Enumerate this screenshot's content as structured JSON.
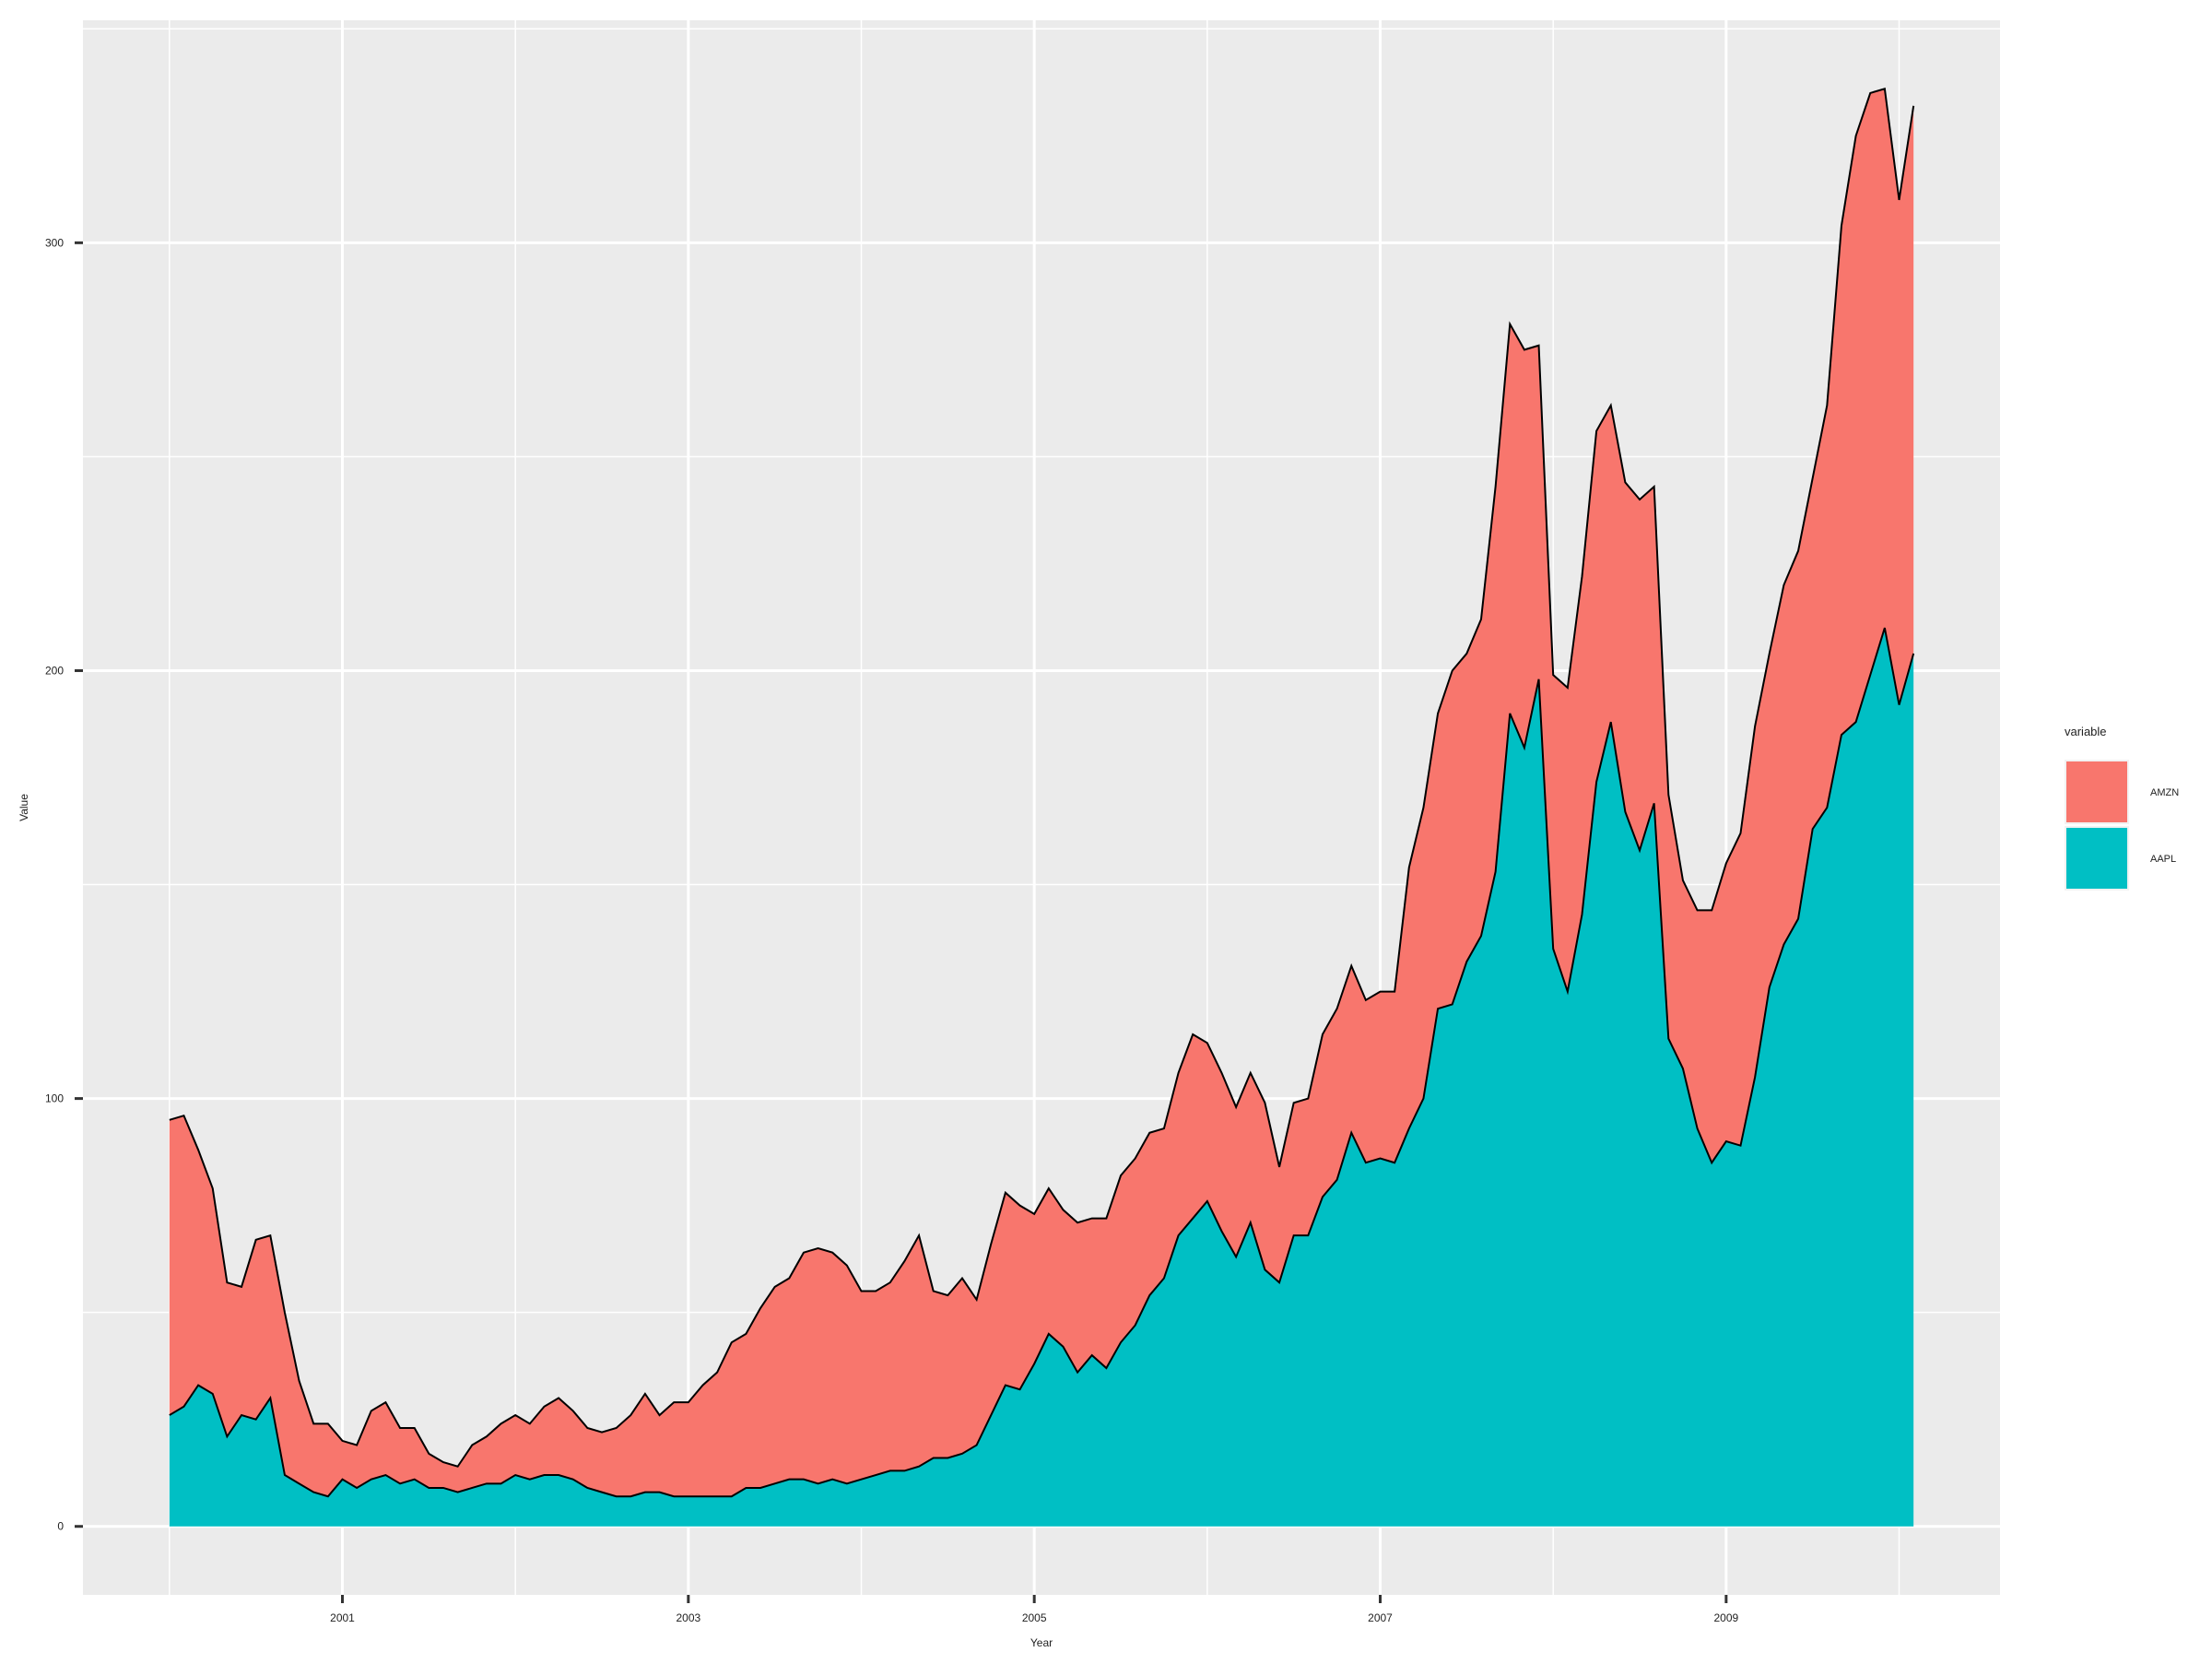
{
  "chart_data": {
    "type": "area",
    "stacked": true,
    "title": "",
    "xlabel": "Year",
    "ylabel": "Value",
    "x_ticks": [
      "2001",
      "2003",
      "2005",
      "2007",
      "2009"
    ],
    "y_ticks": [
      0,
      100,
      200,
      300
    ],
    "x_range": [
      "1999-07",
      "2010-08"
    ],
    "ylim": [
      -16,
      352
    ],
    "grid": true,
    "legend": {
      "title": "variable",
      "position": "right",
      "entries": [
        {
          "label": "AMZN",
          "color": "#F8766D"
        },
        {
          "label": "AAPL",
          "color": "#00BFC4"
        }
      ]
    },
    "x_start": "2000-01",
    "x_step": "monthly",
    "series": [
      {
        "name": "AAPL",
        "color": "#00BFC4",
        "values": [
          26,
          28,
          33,
          31,
          21,
          26,
          25,
          30,
          12,
          10,
          8,
          7,
          11,
          9,
          11,
          12,
          10,
          11,
          9,
          9,
          8,
          9,
          10,
          10,
          12,
          11,
          12,
          12,
          11,
          9,
          8,
          7,
          7,
          8,
          8,
          7,
          7,
          7,
          7,
          7,
          9,
          9,
          10,
          11,
          11,
          10,
          11,
          10,
          11,
          12,
          13,
          13,
          14,
          16,
          16,
          17,
          19,
          26,
          33,
          32,
          38,
          45,
          42,
          36,
          40,
          37,
          43,
          47,
          54,
          58,
          68,
          72,
          76,
          69,
          63,
          71,
          60,
          57,
          68,
          68,
          77,
          81,
          92,
          85,
          86,
          85,
          93,
          100,
          121,
          122,
          132,
          138,
          153,
          190,
          182,
          198,
          135,
          125,
          143,
          174,
          188,
          167,
          158,
          169,
          114,
          107,
          93,
          85,
          90,
          89,
          105,
          126,
          136,
          142,
          163,
          168,
          185,
          188,
          199,
          210,
          192,
          204
        ]
      },
      {
        "name": "AMZN",
        "color": "#F8766D",
        "values": [
          69,
          68,
          55,
          48,
          36,
          30,
          42,
          38,
          38,
          24,
          16,
          17,
          9,
          10,
          16,
          17,
          13,
          12,
          8,
          6,
          6,
          10,
          11,
          14,
          14,
          13,
          16,
          18,
          16,
          14,
          14,
          16,
          19,
          23,
          18,
          22,
          22,
          26,
          29,
          36,
          36,
          42,
          46,
          47,
          53,
          55,
          53,
          51,
          44,
          43,
          44,
          49,
          54,
          39,
          38,
          41,
          34,
          40,
          45,
          43,
          35,
          34,
          32,
          35,
          32,
          35,
          39,
          39,
          38,
          35,
          38,
          43,
          37,
          37,
          35,
          35,
          39,
          27,
          31,
          32,
          38,
          40,
          39,
          38,
          39,
          40,
          61,
          68,
          69,
          78,
          72,
          74,
          90,
          91,
          93,
          78,
          64,
          71,
          79,
          82,
          74,
          77,
          82,
          74,
          57,
          44,
          51,
          59,
          65,
          73,
          82,
          78,
          84,
          86,
          82,
          94,
          119,
          137,
          136,
          126,
          118,
          128
        ]
      }
    ]
  }
}
